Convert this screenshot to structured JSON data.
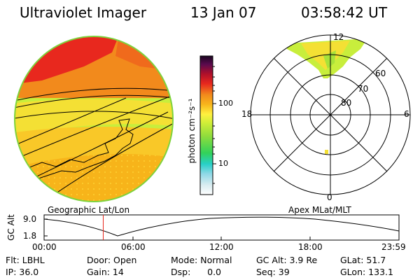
{
  "header": {
    "instrument": "Ultraviolet Imager",
    "date": "13 Jan 07",
    "time": "03:58:42 UT"
  },
  "colorbar": {
    "unit_label": "photon cm⁻²s⁻¹",
    "tick_100": "100",
    "tick_10": "10"
  },
  "polar": {
    "mlt_top": "12",
    "mlt_left": "18",
    "mlt_right": "6",
    "mlt_bottom": "0",
    "lat_60": "60",
    "lat_70": "70",
    "lat_80": "80"
  },
  "labels": {
    "geographic": "Geographic Lat/Lon",
    "apex": "Apex MLat/MLT"
  },
  "altitude_plot": {
    "ylabel": "GC Alt",
    "ymax": "9.0",
    "ymin": "1.8",
    "x_ticks": [
      "00:00",
      "06:00",
      "12:00",
      "18:00",
      "23:59"
    ],
    "cursor_hour": 4.0
  },
  "status": {
    "flt": "Flt: LBHL",
    "ip": "IP: 36.0",
    "door": "Door: Open",
    "gain": "Gain: 14",
    "mode": "Mode: Normal",
    "dsp": "Dsp:      0.0",
    "gcalt": "GC Alt: 3.9 Re",
    "seq": "Seq: 39",
    "glat": "GLat: 51.7",
    "glon": "GLon: 133.1"
  },
  "colors": {
    "red": "#e8281e",
    "orange": "#f28a1c",
    "amber": "#f7b41a",
    "yellow": "#f4e034",
    "lime": "#c8ee3c",
    "green": "#7ed23c"
  }
}
